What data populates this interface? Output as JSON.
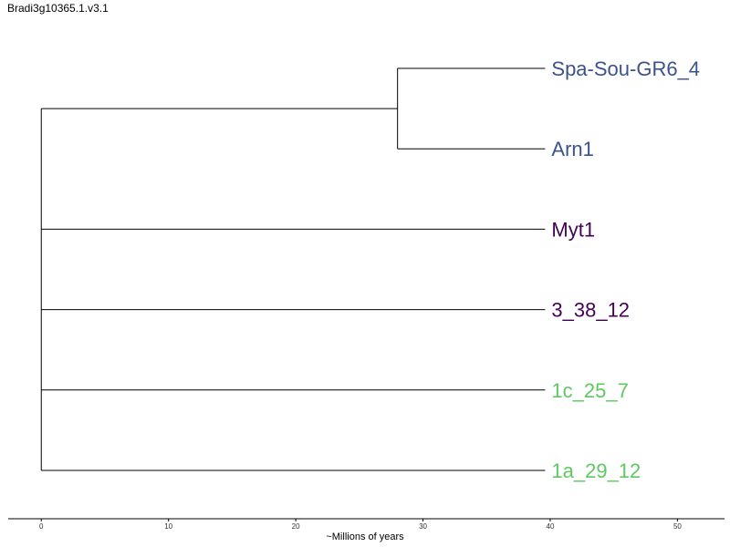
{
  "title": "Bradi3g10365.1.v3.1",
  "axis": {
    "label": "~Millions of years",
    "min": -2.6,
    "max": 53.7,
    "ticks": [
      0,
      10,
      20,
      30,
      40,
      50
    ]
  },
  "tree": {
    "root_age": 0,
    "tips": [
      {
        "name": "Spa-Sou-GR6_4",
        "color": "#3b528b",
        "x": 39.6
      },
      {
        "name": "Arn1",
        "color": "#3b528b",
        "x": 39.6
      },
      {
        "name": "Myt1",
        "color": "#440154",
        "x": 39.6
      },
      {
        "name": "3_38_12",
        "color": "#440154",
        "x": 39.6
      },
      {
        "name": "1c_25_7",
        "color": "#5ec962",
        "x": 39.6
      },
      {
        "name": "1a_29_12",
        "color": "#5ec962",
        "x": 39.6
      }
    ],
    "clades": [
      {
        "members": [
          "Spa-Sou-GR6_4",
          "Arn1"
        ],
        "node_x": 28.0
      }
    ]
  }
}
